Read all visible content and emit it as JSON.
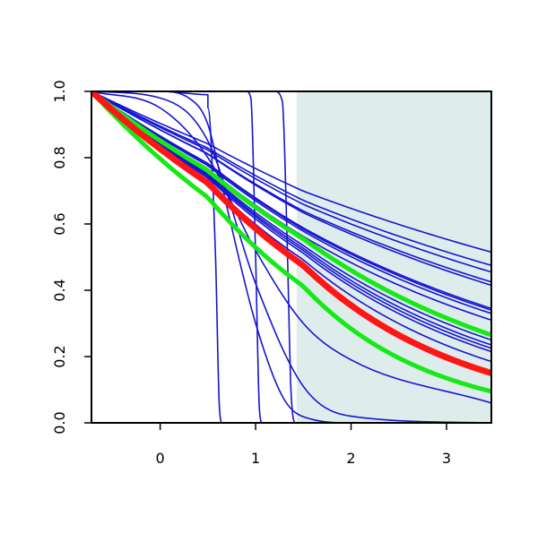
{
  "chart_data": {
    "type": "line",
    "title": "",
    "xlabel": "",
    "ylabel": "",
    "xlim": [
      -0.72,
      3.47
    ],
    "ylim": [
      0.0,
      1.0
    ],
    "x_ticks": [
      0,
      1,
      2,
      3
    ],
    "x_tick_labels": [
      "0",
      "1",
      "2",
      "3"
    ],
    "y_ticks": [
      0.0,
      0.2,
      0.4,
      0.6,
      0.8,
      1.0
    ],
    "y_tick_labels": [
      "0.0",
      "0.2",
      "0.4",
      "0.6",
      "0.8",
      "1.0"
    ],
    "grid": false,
    "legend": "none",
    "shaded_region": {
      "x_from": 1.43,
      "x_to": 3.47,
      "color": "#dfecec"
    },
    "colors": {
      "blue": "#1515d0",
      "red": "#ff1515",
      "green": "#16ea16"
    },
    "series": [
      {
        "color": "blue",
        "x": [
          -0.72,
          0.5,
          1.5,
          3.47
        ],
        "y": [
          1.0,
          0.842,
          0.699,
          0.515
        ]
      },
      {
        "color": "blue",
        "x": [
          -0.72,
          0.5,
          1.5,
          3.47
        ],
        "y": [
          1.0,
          0.829,
          0.671,
          0.475
        ]
      },
      {
        "color": "blue",
        "x": [
          -0.72,
          0.5,
          1.5,
          3.47
        ],
        "y": [
          1.0,
          0.823,
          0.659,
          0.455
        ]
      },
      {
        "color": "blue",
        "x": [
          -0.72,
          0.5,
          1.5,
          3.47
        ],
        "y": [
          1.0,
          0.812,
          0.639,
          0.425
        ]
      },
      {
        "color": "blue",
        "x": [
          -0.72,
          0.5,
          1.5,
          3.47
        ],
        "y": [
          1.0,
          0.811,
          0.634,
          0.415
        ]
      },
      {
        "color": "blue",
        "x": [
          -0.72,
          0.5,
          1.5,
          3.47
        ],
        "y": [
          1.0,
          0.783,
          0.588,
          0.345
        ]
      },
      {
        "color": "blue",
        "x": [
          -0.72,
          0.5,
          1.5,
          3.47
        ],
        "y": [
          1.0,
          0.781,
          0.584,
          0.34
        ]
      },
      {
        "color": "blue",
        "x": [
          -0.72,
          0.5,
          1.5,
          3.47
        ],
        "y": [
          1.0,
          0.776,
          0.578,
          0.33
        ]
      },
      {
        "color": "blue",
        "x": [
          -0.72,
          0.5,
          1.5,
          3.47
        ],
        "y": [
          1.0,
          0.767,
          0.562,
          0.31
        ]
      },
      {
        "color": "blue",
        "x": [
          -0.72,
          0.5,
          1.5,
          3.47
        ],
        "y": [
          1.0,
          0.752,
          0.535,
          0.25
        ]
      },
      {
        "color": "blue",
        "x": [
          -0.72,
          0.5,
          1.5,
          3.47
        ],
        "y": [
          1.0,
          0.748,
          0.527,
          0.235
        ]
      },
      {
        "color": "blue",
        "x": [
          -0.72,
          0.5,
          1.5,
          3.47
        ],
        "y": [
          1.0,
          0.744,
          0.52,
          0.225
        ]
      },
      {
        "color": "blue",
        "x": [
          -0.72,
          0.5,
          1.5,
          3.47
        ],
        "y": [
          1.0,
          0.739,
          0.512,
          0.215
        ]
      },
      {
        "color": "blue",
        "x": [
          -0.72,
          0.5,
          1.5,
          3.47
        ],
        "y": [
          1.0,
          0.728,
          0.492,
          0.185
        ]
      },
      {
        "color": "blue",
        "x": [
          -0.72,
          0.0,
          0.5,
          1.0,
          1.5,
          2.0,
          3.47
        ],
        "y": [
          1.0,
          0.95,
          0.8,
          0.52,
          0.3,
          0.19,
          0.06
        ]
      },
      {
        "color": "blue",
        "x": [
          -0.72,
          0.0,
          0.5,
          1.0,
          1.5,
          2.0,
          3.47
        ],
        "y": [
          1.0,
          0.98,
          0.85,
          0.42,
          0.11,
          0.02,
          0.0
        ]
      },
      {
        "color": "blue",
        "x": [
          -0.72,
          0.0,
          0.3,
          0.5,
          0.7,
          1.0,
          1.3,
          1.6,
          2.0,
          3.47
        ],
        "y": [
          1.0,
          1.0,
          0.98,
          0.9,
          0.65,
          0.3,
          0.07,
          0.01,
          0.0,
          0.0
        ]
      },
      {
        "color": "blue",
        "x": [
          -0.72,
          0.0,
          0.5,
          0.5,
          0.58,
          0.62,
          0.65,
          3.47
        ],
        "y": [
          1.0,
          1.0,
          0.99,
          0.95,
          0.5,
          0.05,
          0.0,
          0.0
        ]
      },
      {
        "color": "blue",
        "x": [
          -0.72,
          0.0,
          0.9,
          0.95,
          1.0,
          1.04,
          1.07,
          3.47
        ],
        "y": [
          1.0,
          1.0,
          1.0,
          0.98,
          0.5,
          0.04,
          0.0,
          0.0
        ]
      },
      {
        "color": "blue",
        "x": [
          -0.72,
          0.0,
          1.2,
          1.28,
          1.33,
          1.37,
          1.42,
          3.47
        ],
        "y": [
          1.0,
          1.0,
          1.0,
          0.97,
          0.55,
          0.1,
          0.0,
          0.0
        ]
      },
      {
        "color": "red",
        "x": [
          -0.72,
          0.5,
          1.5,
          3.47
        ],
        "y": [
          1.0,
          0.724,
          0.475,
          0.15
        ]
      },
      {
        "color": "green",
        "x": [
          -0.72,
          0.5,
          1.5,
          3.47
        ],
        "y": [
          1.0,
          0.761,
          0.555,
          0.265
        ]
      },
      {
        "color": "green",
        "x": [
          -0.72,
          0.5,
          1.5,
          3.47
        ],
        "y": [
          1.0,
          0.68,
          0.412,
          0.095
        ]
      }
    ]
  }
}
